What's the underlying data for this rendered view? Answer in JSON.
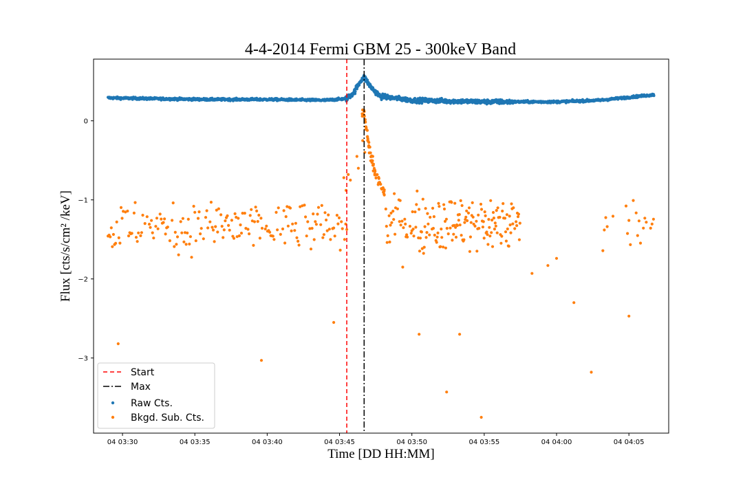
{
  "chart_data": {
    "type": "scatter",
    "title": "4-4-2014 Fermi GBM 25 - 300keV Band",
    "xlabel": "Time [DD HH:MM]",
    "ylabel": "Flux [cts/s/cm² /keV]",
    "xlim": [
      "04 03:28:00",
      "04 04:07:45"
    ],
    "ylim": [
      -3.95,
      0.78
    ],
    "x_ticks": [
      {
        "t": "04 03:30",
        "min": 2
      },
      {
        "t": "04 03:35",
        "min": 7
      },
      {
        "t": "04 03:40",
        "min": 12
      },
      {
        "t": "04 03:45",
        "min": 17
      },
      {
        "t": "04 03:50",
        "min": 22
      },
      {
        "t": "04 03:55",
        "min": 27
      },
      {
        "t": "04 04:00",
        "min": 32
      },
      {
        "t": "04 04:05",
        "min": 37
      }
    ],
    "y_ticks": [
      0,
      -1,
      -2,
      -3
    ],
    "grid": false,
    "legend_position": "lower-left",
    "vlines": [
      {
        "name": "Start",
        "x": "04 03:45:30",
        "color": "#ff0000",
        "style": "dashed"
      },
      {
        "name": "Max",
        "x": "04 03:46:42",
        "color": "#000000",
        "style": "dashdot"
      }
    ],
    "series": [
      {
        "name": "Raw Cts.",
        "color": "#1f77b4",
        "marker": "dot",
        "x_range": [
          "04 03:29:00",
          "04 04:06:45"
        ],
        "trend": [
          [
            "04 03:29:00",
            0.29
          ],
          [
            "04 03:32:00",
            0.28
          ],
          [
            "04 03:36:00",
            0.27
          ],
          [
            "04 03:40:00",
            0.27
          ],
          [
            "04 03:44:00",
            0.26
          ],
          [
            "04 03:45:30",
            0.28
          ],
          [
            "04 03:46:00",
            0.36
          ],
          [
            "04 03:46:30",
            0.52
          ],
          [
            "04 03:46:42",
            0.55
          ],
          [
            "04 03:47:12",
            0.42
          ],
          [
            "04 03:47:48",
            0.31
          ],
          [
            "04 03:50:00",
            0.26
          ],
          [
            "04 03:55:00",
            0.24
          ],
          [
            "04 04:00:00",
            0.24
          ],
          [
            "04 04:03:00",
            0.26
          ],
          [
            "04 04:06:45",
            0.33
          ]
        ]
      },
      {
        "name": "Bkgd. Sub. Cts.",
        "color": "#ff7f0e",
        "marker": "dot",
        "x_range": [
          "04 03:29:00",
          "04 04:06:45"
        ],
        "typical_range": [
          -2.3,
          -0.9
        ],
        "peak": {
          "x": "04 03:46:42",
          "y": 0.1
        },
        "outliers": [
          [
            "04 03:29:42",
            -2.82
          ],
          [
            "04 03:39:36",
            -3.03
          ],
          [
            "04 03:52:24",
            -3.43
          ],
          [
            "04 03:54:48",
            -3.75
          ],
          [
            "04 04:02:24",
            -3.18
          ],
          [
            "04 03:50:30",
            -2.7
          ],
          [
            "04 03:53:18",
            -2.7
          ],
          [
            "04 03:44:36",
            -2.55
          ],
          [
            "04 04:05:00",
            -2.47
          ]
        ]
      }
    ]
  }
}
